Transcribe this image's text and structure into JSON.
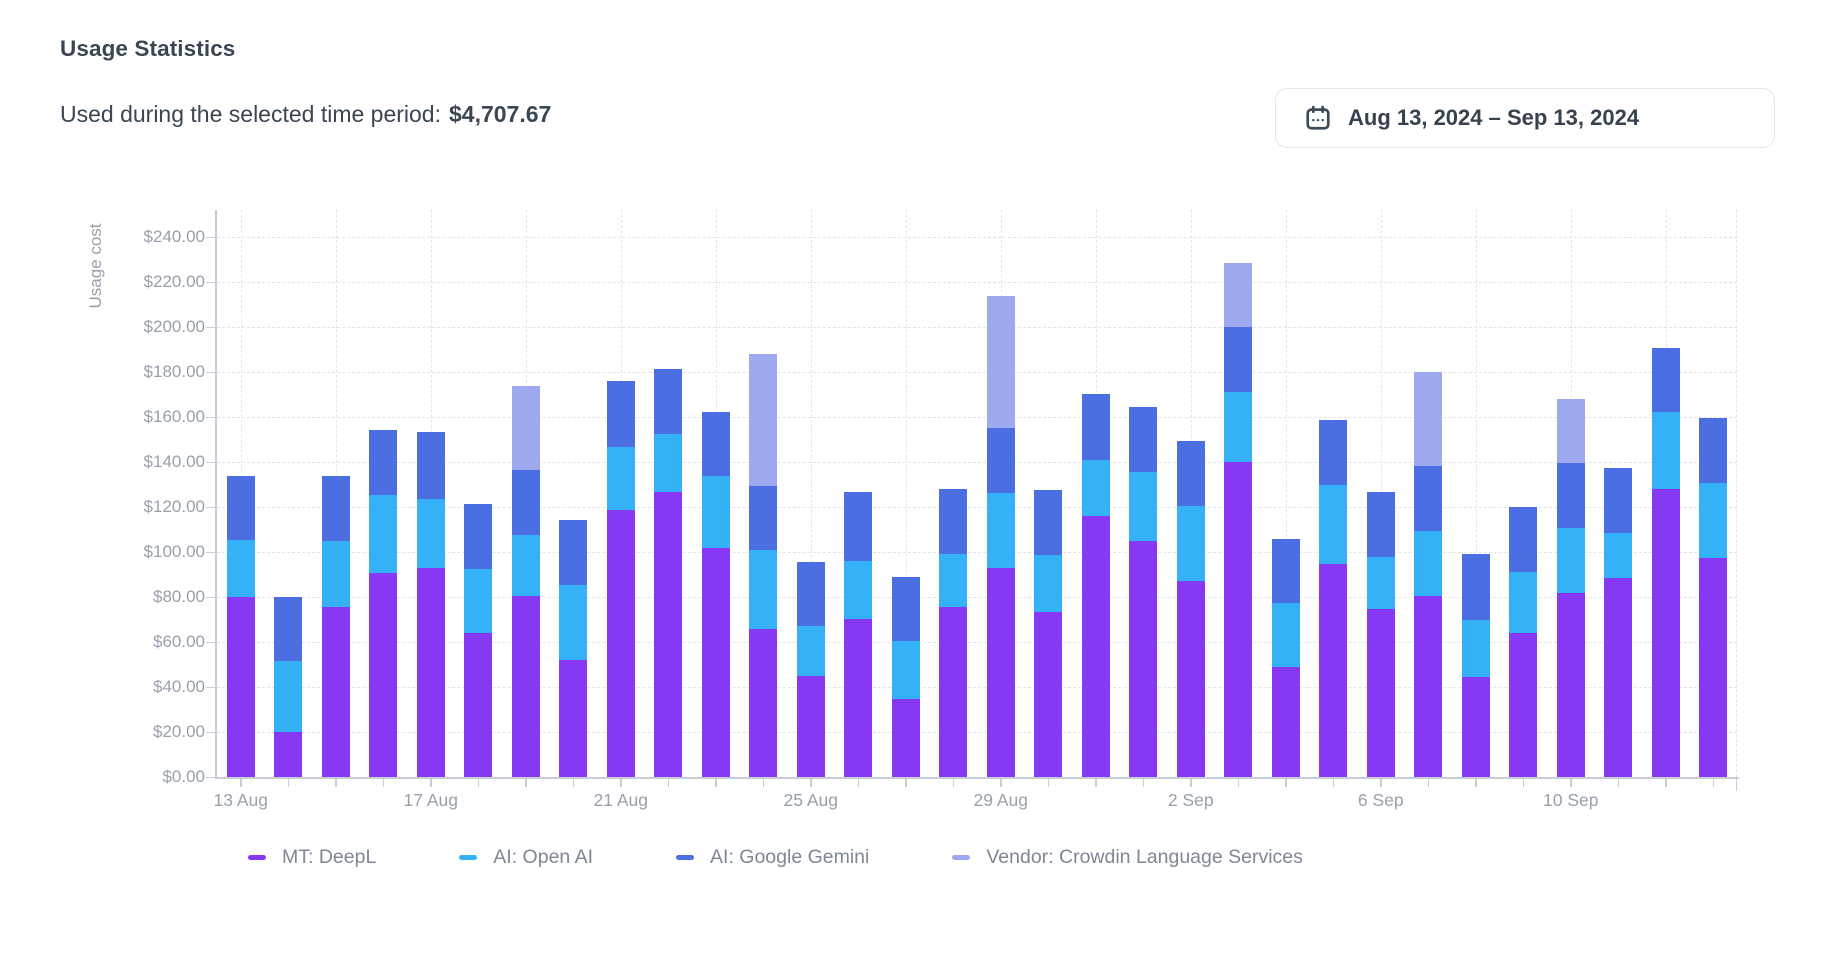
{
  "header": {
    "title": "Usage Statistics",
    "subtitle_label": "Used during the selected time period:",
    "subtitle_amount": "$4,707.67",
    "date_range": "Aug 13, 2024 – Sep 13, 2024"
  },
  "icons": {
    "calendar": "calendar-icon"
  },
  "chart_data": {
    "type": "bar",
    "stacked": true,
    "title": "",
    "xlabel": "",
    "ylabel": "Usage cost",
    "ylim": [
      0,
      240
    ],
    "y_tick_step": 20,
    "y_tick_prefix": "$",
    "grid": true,
    "legend_position": "bottom",
    "x_tick_labels_shown": [
      "13 Aug",
      "17 Aug",
      "21 Aug",
      "25 Aug",
      "29 Aug",
      "2 Sep",
      "6 Sep",
      "10 Sep"
    ],
    "categories": [
      "13 Aug",
      "14 Aug",
      "15 Aug",
      "16 Aug",
      "17 Aug",
      "18 Aug",
      "19 Aug",
      "20 Aug",
      "21 Aug",
      "22 Aug",
      "23 Aug",
      "24 Aug",
      "25 Aug",
      "26 Aug",
      "27 Aug",
      "28 Aug",
      "29 Aug",
      "30 Aug",
      "31 Aug",
      "1 Sep",
      "2 Sep",
      "3 Sep",
      "4 Sep",
      "5 Sep",
      "6 Sep",
      "7 Sep",
      "8 Sep",
      "9 Sep",
      "10 Sep",
      "11 Sep",
      "12 Sep",
      "13 Sep"
    ],
    "series": [
      {
        "name": "MT: DeepL",
        "color": "#8638f2",
        "values": [
          79.9,
          19.9,
          75.6,
          90.8,
          92.9,
          64.0,
          80.3,
          52.0,
          118.7,
          126.5,
          101.6,
          65.6,
          45.0,
          70.1,
          34.5,
          75.7,
          92.7,
          73.5,
          116.1,
          105.0,
          87.1,
          140.1,
          49.0,
          94.5,
          74.5,
          80.4,
          44.6,
          63.9,
          81.6,
          88.6,
          127.9,
          97.2
        ]
      },
      {
        "name": "AI: Open AI",
        "color": "#35b1f7",
        "values": [
          25.4,
          31.5,
          29.4,
          34.7,
          30.8,
          28.6,
          27.1,
          33.3,
          28.1,
          25.8,
          32.3,
          35.3,
          22.1,
          25.9,
          25.8,
          23.4,
          33.7,
          25.0,
          24.8,
          30.4,
          33.5,
          30.9,
          28.2,
          35.1,
          23.4,
          28.9,
          25.2,
          27.1,
          28.9,
          20.0,
          34.5,
          33.6
        ]
      },
      {
        "name": "AI: Google Gemini",
        "color": "#4b6fe3",
        "values": [
          28.6,
          28.7,
          28.9,
          28.9,
          29.5,
          28.9,
          28.9,
          28.9,
          29.2,
          29.0,
          28.5,
          28.6,
          28.3,
          30.5,
          28.7,
          28.9,
          28.7,
          28.9,
          29.2,
          29.2,
          28.7,
          29.2,
          28.4,
          29.1,
          28.6,
          28.9,
          29.3,
          29.0,
          28.9,
          28.6,
          28.1,
          28.6
        ]
      },
      {
        "name": "Vendor: Crowdin Language Services",
        "color": "#9fa9ef",
        "values": [
          0,
          0,
          0,
          0,
          0,
          0,
          37.5,
          0,
          0,
          0,
          0,
          58.5,
          0,
          0,
          0,
          0,
          58.8,
          0,
          0,
          0,
          0,
          28.4,
          0,
          0,
          0,
          41.7,
          0,
          0,
          28.5,
          0,
          0,
          0
        ]
      }
    ]
  }
}
